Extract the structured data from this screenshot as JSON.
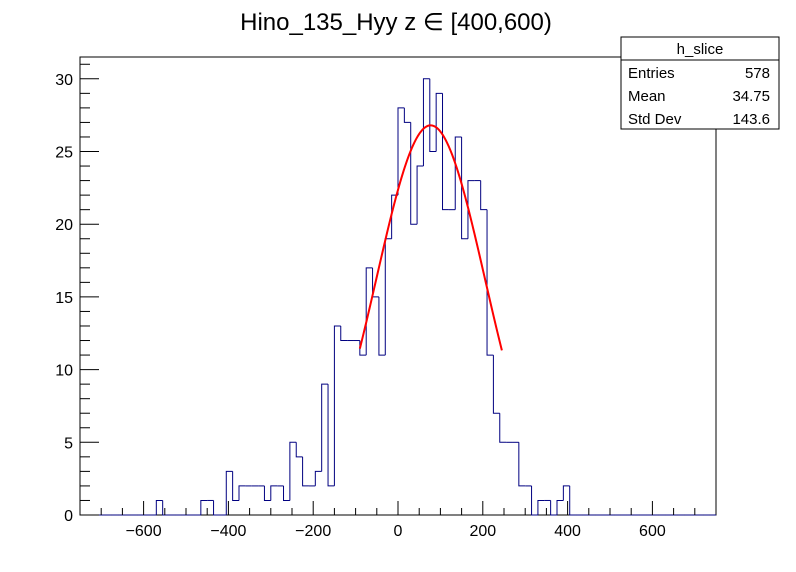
{
  "chart_data": {
    "type": "histogram",
    "title": "Hino_135_Hyy z  ∈ [400,600)",
    "xlim": [
      -750,
      750
    ],
    "ylim": [
      0,
      31.5
    ],
    "x_ticks": [
      -600,
      -400,
      -200,
      0,
      200,
      400,
      600
    ],
    "y_ticks": [
      0,
      5,
      10,
      15,
      20,
      25,
      30
    ],
    "bin_width": 15,
    "hist_color": "#000080",
    "fit_color": "#ff0000",
    "bins": [
      {
        "x0": -570,
        "y": 1
      },
      {
        "x0": -465,
        "y": 1
      },
      {
        "x0": -450,
        "y": 1
      },
      {
        "x0": -405,
        "y": 3
      },
      {
        "x0": -390,
        "y": 1
      },
      {
        "x0": -375,
        "y": 2
      },
      {
        "x0": -360,
        "y": 2
      },
      {
        "x0": -345,
        "y": 2
      },
      {
        "x0": -330,
        "y": 2
      },
      {
        "x0": -315,
        "y": 1
      },
      {
        "x0": -300,
        "y": 2
      },
      {
        "x0": -285,
        "y": 2
      },
      {
        "x0": -270,
        "y": 1
      },
      {
        "x0": -255,
        "y": 5
      },
      {
        "x0": -240,
        "y": 4
      },
      {
        "x0": -225,
        "y": 2
      },
      {
        "x0": -210,
        "y": 2
      },
      {
        "x0": -195,
        "y": 3
      },
      {
        "x0": -180,
        "y": 9
      },
      {
        "x0": -165,
        "y": 2
      },
      {
        "x0": -150,
        "y": 13
      },
      {
        "x0": -135,
        "y": 12
      },
      {
        "x0": -120,
        "y": 12
      },
      {
        "x0": -105,
        "y": 12
      },
      {
        "x0": -90,
        "y": 11
      },
      {
        "x0": -75,
        "y": 17
      },
      {
        "x0": -60,
        "y": 15
      },
      {
        "x0": -45,
        "y": 11
      },
      {
        "x0": -30,
        "y": 19
      },
      {
        "x0": -15,
        "y": 22
      },
      {
        "x0": 0,
        "y": 28
      },
      {
        "x0": 15,
        "y": 27
      },
      {
        "x0": 30,
        "y": 20
      },
      {
        "x0": 45,
        "y": 24
      },
      {
        "x0": 60,
        "y": 30
      },
      {
        "x0": 75,
        "y": 25
      },
      {
        "x0": 90,
        "y": 29
      },
      {
        "x0": 105,
        "y": 21
      },
      {
        "x0": 120,
        "y": 21
      },
      {
        "x0": 135,
        "y": 26
      },
      {
        "x0": 150,
        "y": 19
      },
      {
        "x0": 165,
        "y": 23
      },
      {
        "x0": 180,
        "y": 23
      },
      {
        "x0": 195,
        "y": 21
      },
      {
        "x0": 210,
        "y": 11
      },
      {
        "x0": 225,
        "y": 7
      },
      {
        "x0": 240,
        "y": 5
      },
      {
        "x0": 255,
        "y": 5
      },
      {
        "x0": 270,
        "y": 5
      },
      {
        "x0": 285,
        "y": 2
      },
      {
        "x0": 300,
        "y": 2
      },
      {
        "x0": 330,
        "y": 1
      },
      {
        "x0": 345,
        "y": 1
      },
      {
        "x0": 375,
        "y": 1
      },
      {
        "x0": 390,
        "y": 2
      }
    ],
    "fit": {
      "function": "gaussian",
      "constant": 26.8,
      "mean": 77,
      "sigma": 128,
      "range": [
        -90,
        245
      ]
    },
    "stats": {
      "name": "h_slice",
      "rows": [
        {
          "label": "Entries",
          "value": "578"
        },
        {
          "label": "Mean",
          "value": "34.75"
        },
        {
          "label": "Std Dev",
          "value": "143.6"
        }
      ]
    }
  }
}
